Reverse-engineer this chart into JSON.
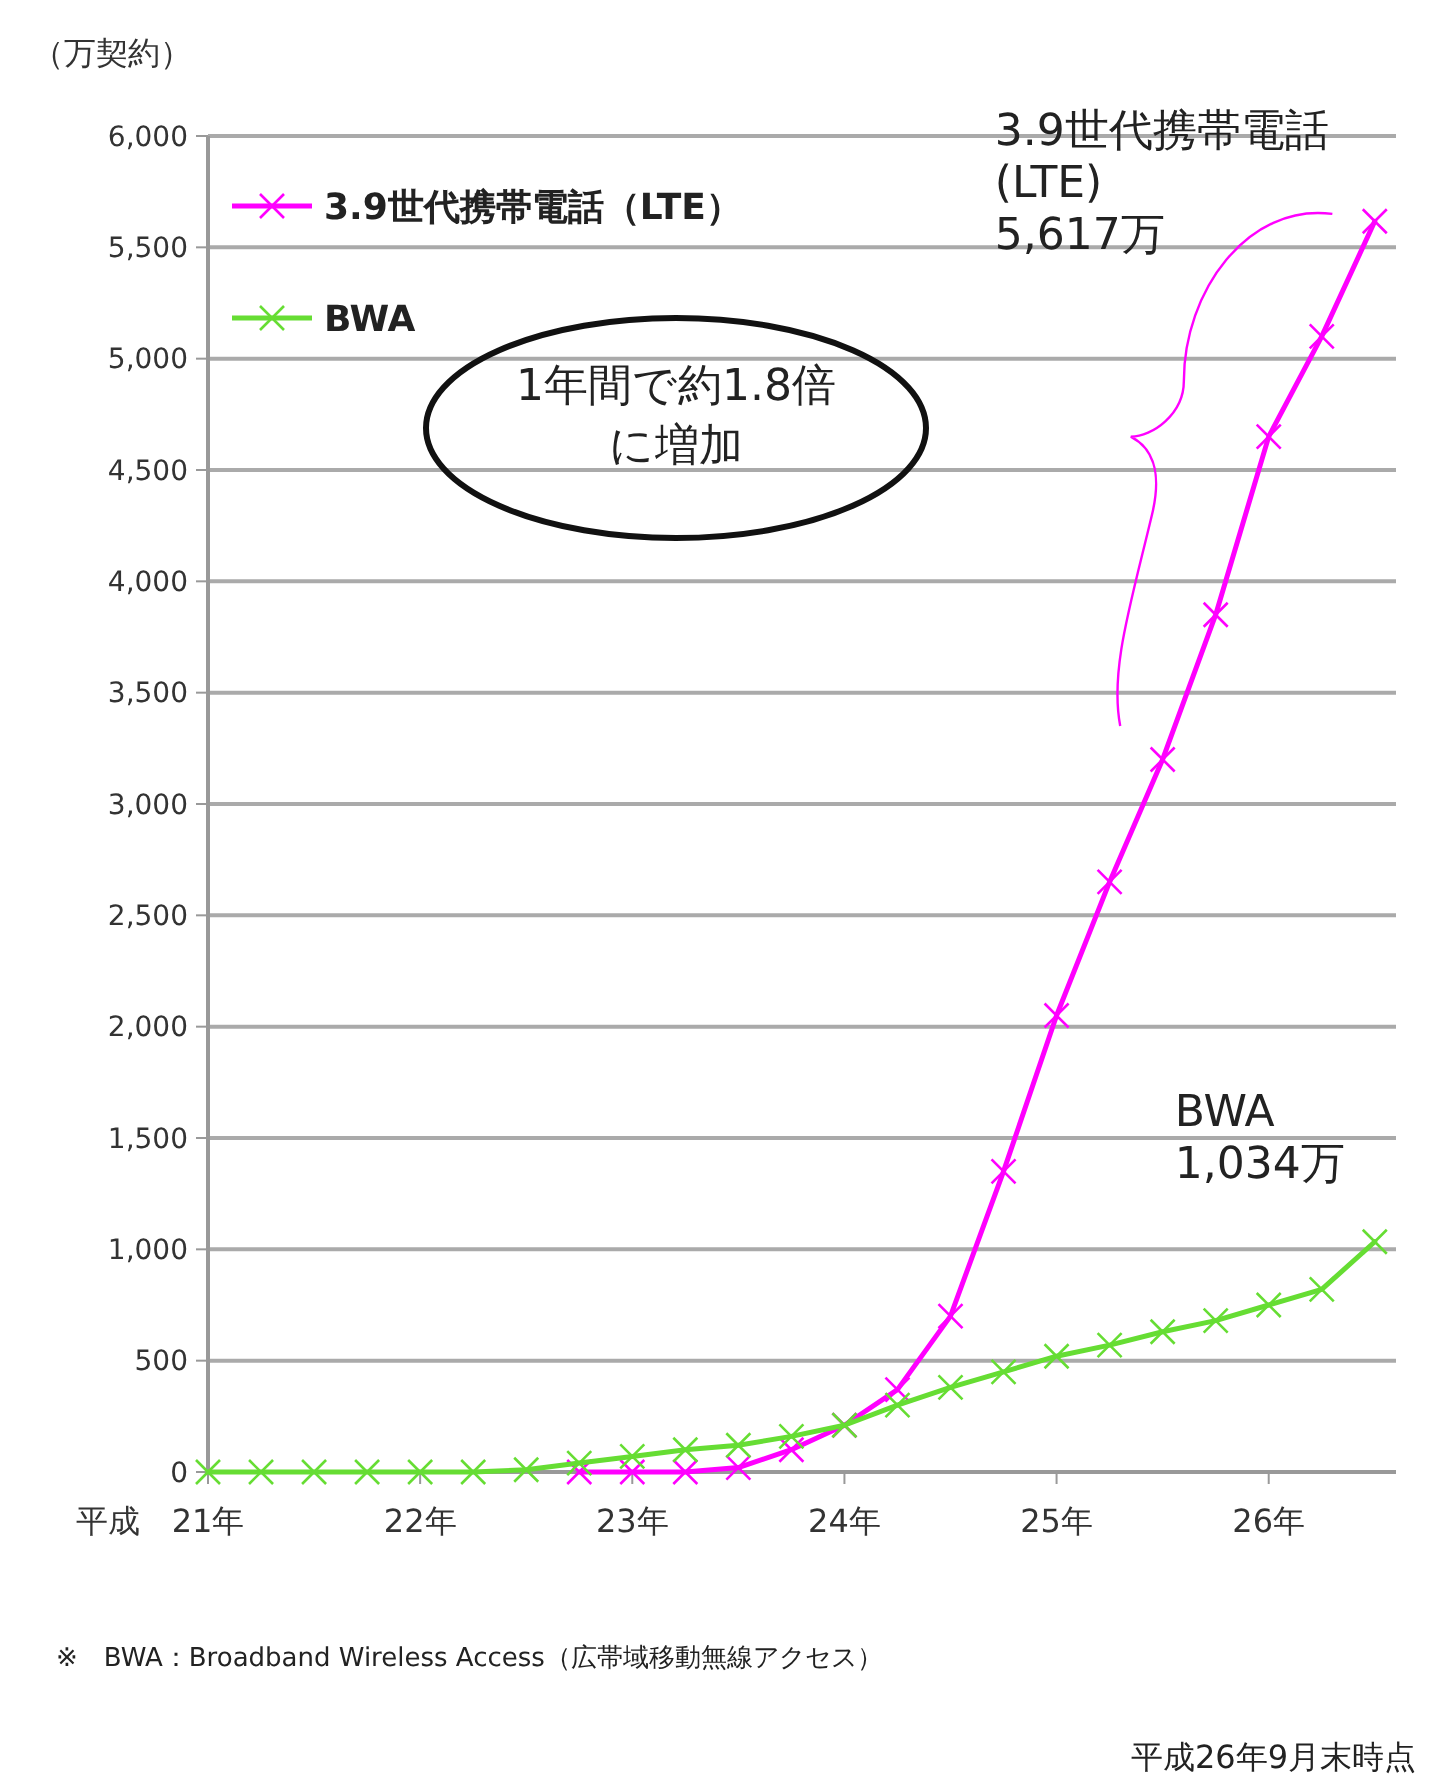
{
  "chart_data": {
    "type": "line",
    "ylabel": "（万契約）",
    "xlabel": "平成",
    "x": [
      21,
      21.25,
      21.5,
      21.75,
      22,
      22.25,
      22.5,
      22.75,
      23,
      23.25,
      23.5,
      23.75,
      24,
      24.25,
      24.5,
      24.75,
      25,
      25.25,
      25.5,
      25.75,
      26,
      26.25,
      26.5
    ],
    "series": [
      {
        "name": "3.9世代携帯電話（LTE）",
        "color": "#ff00ff",
        "values": [
          null,
          null,
          null,
          null,
          null,
          null,
          null,
          0,
          0,
          0,
          20,
          100,
          210,
          370,
          700,
          1350,
          2050,
          2650,
          3200,
          3850,
          4650,
          5100,
          5617
        ]
      },
      {
        "name": "BWA",
        "color": "#66dd33",
        "values": [
          0,
          0,
          0,
          0,
          0,
          0,
          10,
          40,
          70,
          100,
          120,
          160,
          210,
          300,
          380,
          450,
          520,
          570,
          630,
          680,
          750,
          820,
          1034
        ]
      }
    ],
    "xlim": [
      21,
      26.6
    ],
    "xticks": [
      {
        "value": 21,
        "label": "21年"
      },
      {
        "value": 22,
        "label": "22年"
      },
      {
        "value": 23,
        "label": "23年"
      },
      {
        "value": 24,
        "label": "24年"
      },
      {
        "value": 25,
        "label": "25年"
      },
      {
        "value": 26,
        "label": "26年"
      }
    ],
    "ylim": [
      0,
      6000
    ],
    "yticks": [
      0,
      500,
      {
        "value": 1000,
        "label": "1,000"
      },
      {
        "value": 1500,
        "label": "1,500"
      },
      {
        "value": 2000,
        "label": "2,000"
      },
      {
        "value": 2500,
        "label": "2,500"
      },
      {
        "value": 3000,
        "label": "3,000"
      },
      {
        "value": 3500,
        "label": "3,500"
      },
      {
        "value": 4000,
        "label": "4,000"
      },
      {
        "value": 4500,
        "label": "4,500"
      },
      {
        "value": 5000,
        "label": "5,000"
      },
      {
        "value": 5500,
        "label": "5,500"
      },
      {
        "value": 6000,
        "label": "6,000"
      }
    ],
    "grid": "y",
    "legend": "top left",
    "marker": "cross",
    "line_style": "solid",
    "annotations": [
      {
        "text": "3.9世代携帯電話\n(LTE)\n5,617万",
        "x": 26.5,
        "y": 5617
      },
      {
        "text": "BWA\n1,034万",
        "x": 26.5,
        "y": 1034
      },
      "1年間で約1.8倍に増加",
      "※　BWA：Broadband Wireless Access（広帯域移動無線アクセス）",
      "平成26年9月末時点"
    ]
  }
}
